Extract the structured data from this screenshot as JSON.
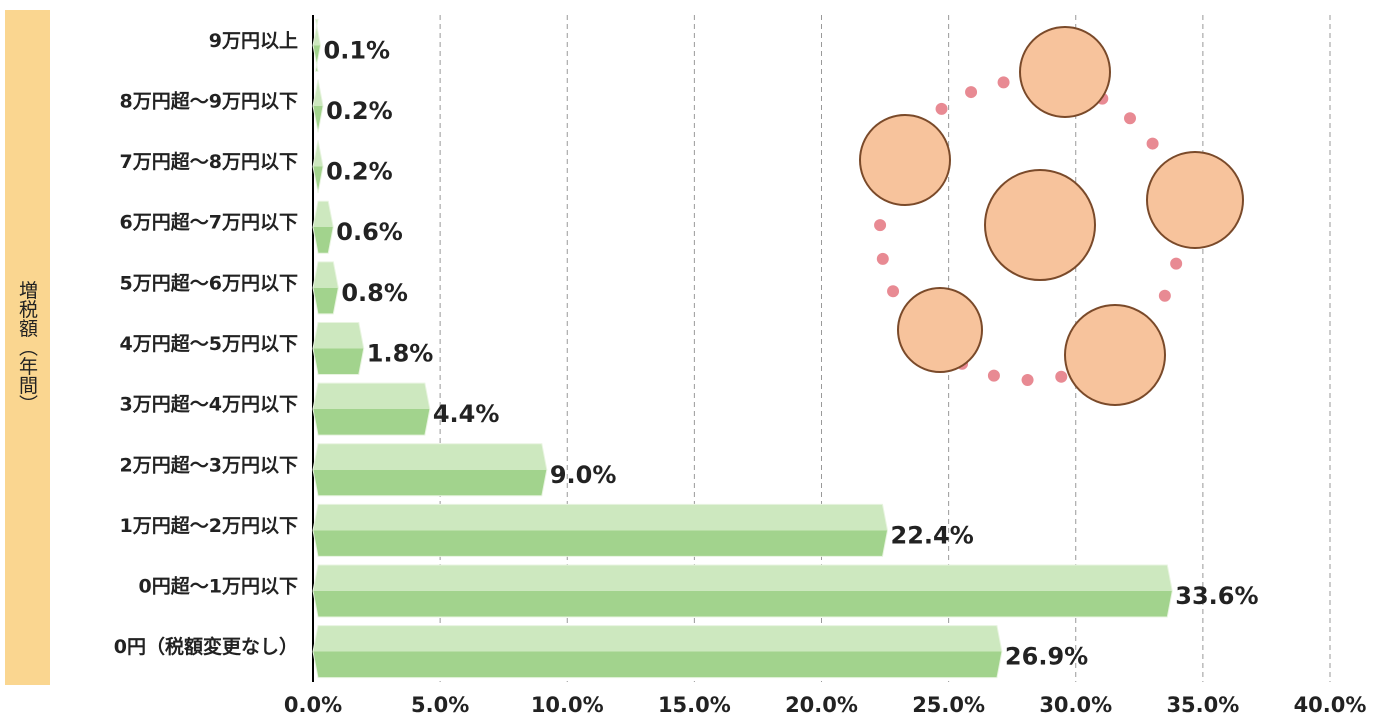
{
  "chart_data": {
    "type": "barh",
    "y_axis_label": "増税額（年間）",
    "categories": [
      "9万円以上",
      "8万円超～9万円以下",
      "7万円超～8万円以下",
      "6万円超～7万円以下",
      "5万円超～6万円以下",
      "4万円超～5万円以下",
      "3万円超～4万円以下",
      "2万円超～3万円以下",
      "1万円超～2万円以下",
      "0円超～1万円以下",
      "0円（税額変更なし）"
    ],
    "values": [
      0.1,
      0.2,
      0.2,
      0.6,
      0.8,
      1.8,
      4.4,
      9.0,
      22.4,
      33.6,
      26.9
    ],
    "value_labels": [
      "0.1%",
      "0.2%",
      "0.2%",
      "0.6%",
      "0.8%",
      "1.8%",
      "4.4%",
      "9.0%",
      "22.4%",
      "33.6%",
      "26.9%"
    ],
    "color": "#b6dea3",
    "xlim": [
      0,
      40
    ],
    "xticks": [
      {
        "value": 0,
        "label": "0.0%"
      },
      {
        "value": 5,
        "label": "5.0%"
      },
      {
        "value": 10,
        "label": "10.0%"
      },
      {
        "value": 15,
        "label": "15.0%"
      },
      {
        "value": 20,
        "label": "20.0%"
      },
      {
        "value": 25,
        "label": "25.0%"
      },
      {
        "value": 30,
        "label": "30.0%"
      },
      {
        "value": 35,
        "label": "35.0%"
      },
      {
        "value": 40,
        "label": "40.0%"
      }
    ],
    "grid": true
  }
}
